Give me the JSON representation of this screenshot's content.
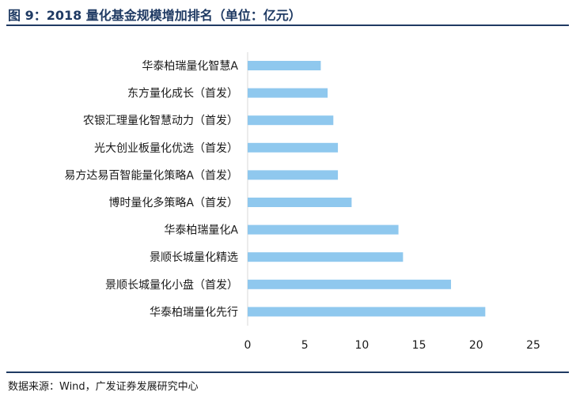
{
  "header": {
    "title": "图 9：2018 量化基金规模增加排名（单位：亿元）"
  },
  "footer": {
    "source": "数据来源：Wind，广发证券发展研究中心"
  },
  "chart_data": {
    "type": "bar",
    "orientation": "horizontal",
    "categories": [
      "华泰柏瑞量化智慧A",
      "东方量化成长（首发）",
      "农银汇理量化智慧动力（首发）",
      "光大创业板量化优选（首发）",
      "易方达易百智能量化策略A（首发）",
      "博时量化多策略A（首发）",
      "华泰柏瑞量化A",
      "景顺长城量化精选",
      "景顺长城量化小盘（首发）",
      "华泰柏瑞量化先行"
    ],
    "values": [
      6.4,
      7.0,
      7.5,
      7.9,
      7.9,
      9.1,
      13.2,
      13.6,
      17.8,
      20.8
    ],
    "xlim": [
      0,
      25
    ],
    "xticks": [
      0,
      5,
      10,
      15,
      20,
      25
    ],
    "bar_color": "#8fc8ee",
    "grid": false,
    "legend": "none"
  }
}
